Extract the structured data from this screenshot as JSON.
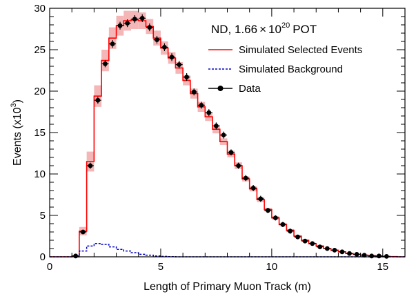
{
  "chart_data": {
    "type": "line",
    "xlabel": "Length of Primary Muon Track (m)",
    "ylabel_prefix": "Events (x10",
    "ylabel_exp": "3",
    "ylabel_suffix": ")",
    "xlim": [
      0,
      16
    ],
    "ylim": [
      0,
      30
    ],
    "x_ticks": [
      0,
      5,
      10,
      15
    ],
    "y_ticks": [
      0,
      5,
      10,
      15,
      20,
      25,
      30
    ],
    "header": {
      "prefix": "ND, 1.66",
      "times": "×",
      "base": "10",
      "exp": "20",
      "suffix": "POT"
    },
    "legend_position": "top-right",
    "colors": {
      "simulated": "#ff0000",
      "band": "#f4b6b6",
      "background": "#0000cc",
      "data": "#000000"
    },
    "bin_edges": [
      0,
      0.333,
      0.667,
      1.0,
      1.333,
      1.667,
      2.0,
      2.333,
      2.667,
      3.0,
      3.333,
      3.667,
      4.0,
      4.333,
      4.667,
      5.0,
      5.333,
      5.667,
      6.0,
      6.333,
      6.667,
      7.0,
      7.333,
      7.667,
      8.0,
      8.333,
      8.667,
      9.0,
      9.333,
      9.667,
      10.0,
      10.333,
      10.667,
      11.0,
      11.333,
      11.667,
      12.0,
      12.333,
      12.667,
      13.0,
      13.333,
      13.667,
      14.0,
      14.333,
      14.667,
      15.0,
      15.333,
      15.667,
      16.0
    ],
    "series": [
      {
        "name": "Simulated Selected Events",
        "style": "solid-step",
        "values": [
          0,
          0,
          0,
          0.1,
          3.1,
          11.5,
          19.4,
          23.7,
          26.4,
          27.9,
          28.5,
          28.6,
          28.5,
          27.8,
          26.4,
          25.2,
          24.0,
          22.8,
          21.3,
          19.7,
          18.1,
          16.9,
          15.4,
          13.9,
          12.4,
          11.0,
          9.4,
          8.2,
          6.9,
          5.7,
          4.7,
          3.9,
          3.2,
          2.5,
          2.0,
          1.6,
          1.3,
          1.0,
          0.8,
          0.6,
          0.4,
          0.3,
          0.2,
          0.15,
          0.1,
          0.05,
          0.03,
          0,
          0
        ],
        "band_halfwidth": [
          0,
          0,
          0,
          0.1,
          0.5,
          1.2,
          1.3,
          1.3,
          1.3,
          1.2,
          1.2,
          1.1,
          1.0,
          0.9,
          0.9,
          0.8,
          0.7,
          0.7,
          0.6,
          0.6,
          0.6,
          0.5,
          0.5,
          0.4,
          0.4,
          0.4,
          0.3,
          0.3,
          0.3,
          0.2,
          0.2,
          0.2,
          0.15,
          0.1,
          0.1,
          0.1,
          0.1,
          0.05,
          0.05,
          0.05,
          0.05,
          0.05,
          0.05,
          0.05,
          0.05,
          0.05,
          0.05,
          0,
          0
        ]
      },
      {
        "name": "Simulated Background",
        "style": "dashed-step",
        "values": [
          0,
          0,
          0,
          0,
          0.7,
          1.3,
          1.6,
          1.5,
          1.2,
          0.9,
          0.7,
          0.5,
          0.3,
          0.2,
          0.1,
          0.05,
          0.02,
          0,
          0,
          0,
          0,
          0,
          0,
          0,
          0,
          0,
          0,
          0,
          0,
          0,
          0,
          0,
          0,
          0,
          0,
          0,
          0,
          0,
          0,
          0,
          0,
          0,
          0,
          0,
          0,
          0,
          0,
          0,
          0
        ]
      },
      {
        "name": "Data",
        "style": "points",
        "x": [
          1.17,
          1.5,
          1.83,
          2.17,
          2.5,
          2.83,
          3.17,
          3.5,
          3.83,
          4.17,
          4.5,
          4.83,
          5.17,
          5.5,
          5.83,
          6.17,
          6.5,
          6.83,
          7.17,
          7.5,
          7.83,
          8.17,
          8.5,
          8.83,
          9.17,
          9.5,
          9.83,
          10.17,
          10.5,
          10.83,
          11.17,
          11.5,
          11.83,
          12.17,
          12.5,
          12.83,
          13.17,
          13.5,
          13.83,
          14.17,
          14.5,
          14.83,
          15.17
        ],
        "values": [
          0.1,
          3.0,
          11.0,
          18.9,
          23.3,
          25.7,
          27.9,
          28.2,
          28.7,
          28.8,
          27.7,
          26.2,
          25.3,
          24.1,
          23.2,
          21.7,
          19.9,
          18.3,
          17.4,
          15.8,
          14.7,
          12.6,
          11.0,
          9.5,
          8.3,
          7.0,
          5.6,
          4.7,
          3.9,
          3.1,
          2.4,
          1.9,
          1.6,
          1.2,
          1.0,
          0.8,
          0.6,
          0.4,
          0.3,
          0.2,
          0.1,
          0.1,
          0.05
        ],
        "errors": [
          0.05,
          0.1,
          0.2,
          0.25,
          0.25,
          0.3,
          0.3,
          0.3,
          0.3,
          0.3,
          0.3,
          0.3,
          0.3,
          0.3,
          0.3,
          0.3,
          0.25,
          0.25,
          0.25,
          0.25,
          0.25,
          0.2,
          0.2,
          0.2,
          0.2,
          0.2,
          0.15,
          0.15,
          0.15,
          0.15,
          0.1,
          0.1,
          0.1,
          0.1,
          0.1,
          0.1,
          0.05,
          0.05,
          0.05,
          0.05,
          0.05,
          0.05,
          0.05
        ]
      }
    ]
  }
}
